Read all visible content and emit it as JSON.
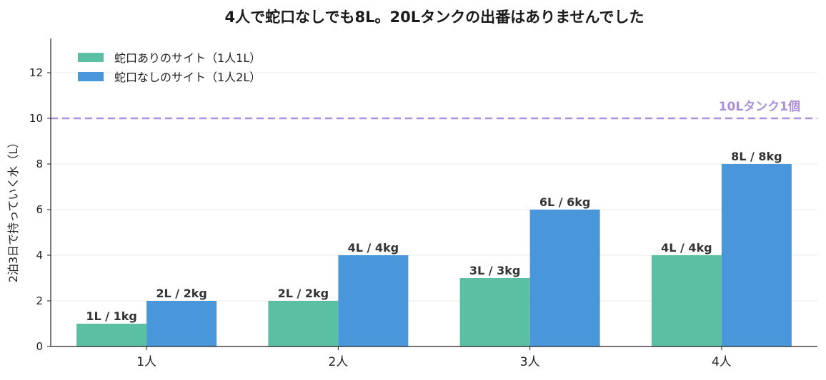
{
  "chart_data": {
    "type": "bar",
    "title": "4人で蛇口なしでも8L。20Lタンクの出番はありませんでした",
    "xlabel": "",
    "ylabel": "2泊3日で持っていく水（L）",
    "categories": [
      "1人",
      "2人",
      "3人",
      "4人"
    ],
    "series": [
      {
        "name": "蛇口ありのサイト（1人1L）",
        "values": [
          1,
          2,
          3,
          4
        ],
        "labels": [
          "1L / 1kg",
          "2L / 2kg",
          "3L / 3kg",
          "4L / 4kg"
        ],
        "color": "#5bbfa3"
      },
      {
        "name": "蛇口なしのサイト（1人2L）",
        "values": [
          2,
          4,
          6,
          8
        ],
        "labels": [
          "2L / 2kg",
          "4L / 4kg",
          "6L / 6kg",
          "8L / 8kg"
        ],
        "color": "#4a96db"
      }
    ],
    "ylim": [
      0,
      13.5
    ],
    "yticks": [
      0,
      2,
      4,
      6,
      8,
      10,
      12
    ],
    "grid": true,
    "legend_position": "top-left",
    "reference_line": {
      "value": 10,
      "label": "10Lタンク1個",
      "color": "#a98fde",
      "style": "dashed"
    }
  }
}
